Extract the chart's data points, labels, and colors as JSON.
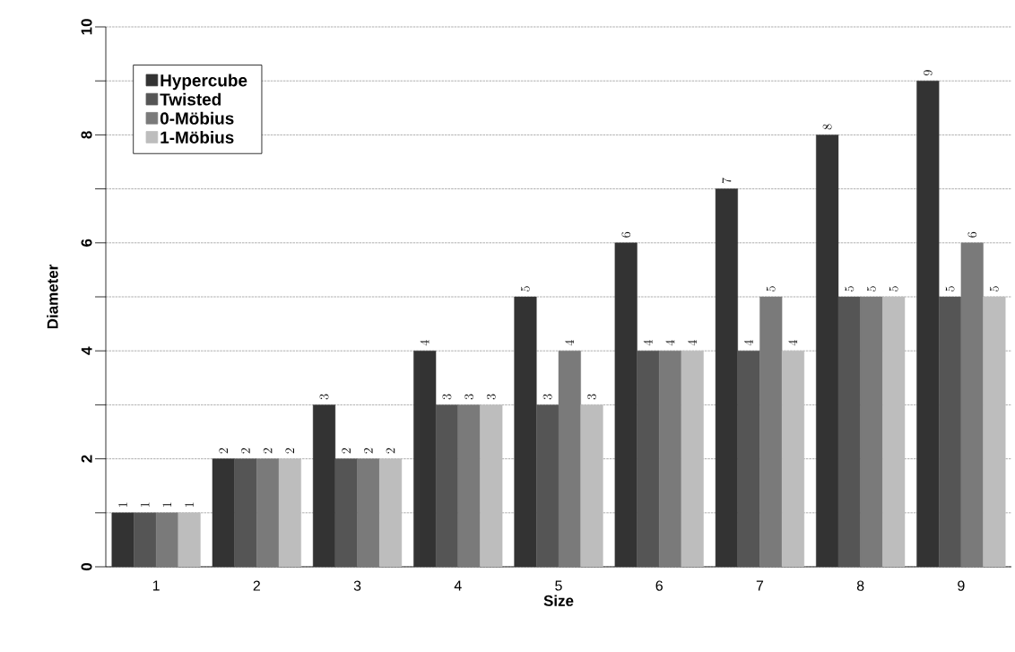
{
  "chart_data": {
    "type": "bar",
    "xlabel": "Size",
    "ylabel": "Diameter",
    "categories": [
      "1",
      "2",
      "3",
      "4",
      "5",
      "6",
      "7",
      "8",
      "9"
    ],
    "series": [
      {
        "name": "Hypercube",
        "color": "#333333",
        "values": [
          1,
          2,
          3,
          4,
          5,
          6,
          7,
          8,
          9
        ]
      },
      {
        "name": "Twisted",
        "color": "#555555",
        "values": [
          1,
          2,
          2,
          3,
          3,
          4,
          4,
          5,
          5
        ]
      },
      {
        "name": "0-Möbius",
        "color": "#7a7a7a",
        "values": [
          1,
          2,
          2,
          3,
          4,
          4,
          5,
          5,
          6
        ]
      },
      {
        "name": "1-Möbius",
        "color": "#bdbdbd",
        "values": [
          1,
          2,
          2,
          3,
          3,
          4,
          4,
          5,
          5
        ]
      }
    ],
    "ylim": [
      0,
      10
    ],
    "yticks": [
      0,
      {
        "value": 1,
        "label": null
      },
      2,
      {
        "value": 3,
        "label": null
      },
      4,
      {
        "value": 5,
        "label": null
      },
      6,
      {
        "value": 7,
        "label": null
      },
      8,
      {
        "value": 9,
        "label": null
      },
      10
    ],
    "grid": "y",
    "legend": "top left",
    "data_labels": true
  }
}
